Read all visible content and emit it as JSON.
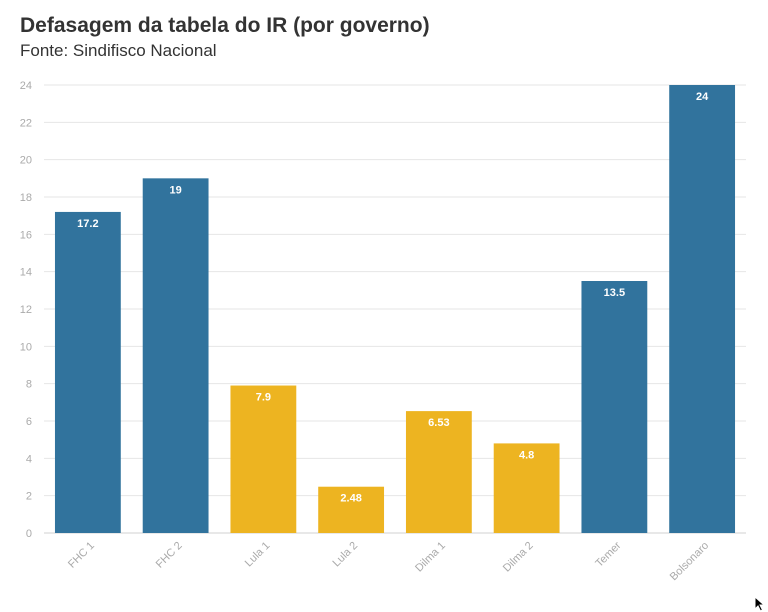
{
  "chart_data": {
    "type": "bar",
    "title": "Defasagem da tabela do IR (por governo)",
    "subtitle": "Fonte: Sindifisco Nacional",
    "xlabel": "",
    "ylabel": "",
    "ylim": [
      0,
      24
    ],
    "yticks": [
      0,
      2,
      4,
      6,
      8,
      10,
      12,
      14,
      16,
      18,
      20,
      22,
      24
    ],
    "grid": true,
    "categories": [
      "FHC 1",
      "FHC 2",
      "Lula 1",
      "Lula 2",
      "Dilma 1",
      "Dilma 2",
      "Temer",
      "Bolsonaro"
    ],
    "values": [
      17.2,
      19,
      7.9,
      2.48,
      6.53,
      4.8,
      13.5,
      24
    ],
    "value_labels": [
      "17.2",
      "19",
      "7.9",
      "2.48",
      "6.53",
      "4.8",
      "13.5",
      "24"
    ],
    "bar_colors": [
      "#31739d",
      "#31739d",
      "#edb421",
      "#edb421",
      "#edb421",
      "#edb421",
      "#31739d",
      "#31739d"
    ]
  },
  "colors": {
    "blue": "#31739d",
    "yellow": "#edb421",
    "grid": "#e6e6e6",
    "tick_text": "#aaaaaa",
    "title_text": "#333333"
  }
}
